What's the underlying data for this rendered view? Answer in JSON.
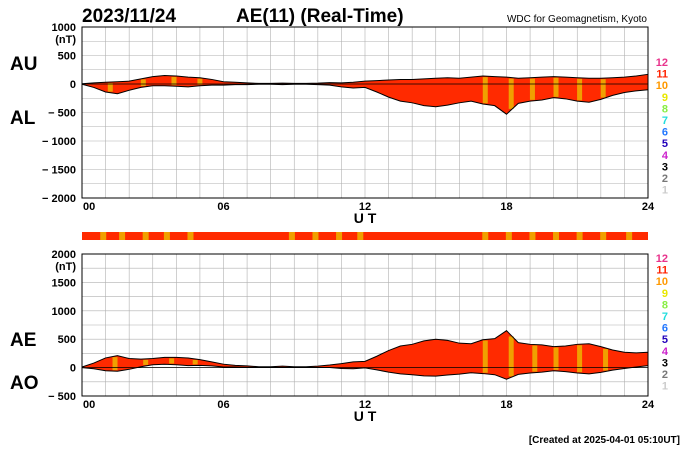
{
  "header": {
    "date": "2023/11/24",
    "title": "AE(11) (Real-Time)",
    "source": "WDC for Geomagnetism, Kyoto"
  },
  "footer": {
    "created": "[Created at 2025-04-01 05:10UT]"
  },
  "legend": {
    "items": [
      {
        "label": "12",
        "color": "#e8338c"
      },
      {
        "label": "11",
        "color": "#ff2200"
      },
      {
        "label": "10",
        "color": "#ff9900"
      },
      {
        "label": "9",
        "color": "#e8e800"
      },
      {
        "label": "8",
        "color": "#88ee44"
      },
      {
        "label": "7",
        "color": "#22dddd"
      },
      {
        "label": "6",
        "color": "#2277ff"
      },
      {
        "label": "5",
        "color": "#2200bb"
      },
      {
        "label": "4",
        "color": "#cc22cc"
      },
      {
        "label": "3",
        "color": "#000000"
      },
      {
        "label": "2",
        "color": "#777777"
      },
      {
        "label": "1",
        "color": "#cccccc"
      }
    ]
  },
  "colors": {
    "fill": "#ff2a00",
    "station_gap": "#f0a000",
    "grid": "#b0b0b0",
    "outline": "#000000"
  },
  "chart_data": [
    {
      "type": "area",
      "panel": "AU/AL",
      "labels": {
        "upper": "AU",
        "lower": "AL"
      },
      "ylabel": "(nT)",
      "xlabel": "U T",
      "ylim": [
        -2000,
        1000
      ],
      "yticks": [
        1000,
        500,
        0,
        -500,
        -1000,
        -1500,
        -2000
      ],
      "ytick_labels": [
        "1000",
        "500",
        "0",
        "− 500",
        "− 1000",
        "− 1500",
        "− 2000"
      ],
      "xlim": [
        0,
        24
      ],
      "xticks": [
        0,
        6,
        12,
        18,
        24
      ],
      "xtick_labels": [
        "00",
        "06",
        "12",
        "18",
        "24"
      ],
      "x": [
        0,
        0.5,
        1,
        1.5,
        2,
        2.5,
        3,
        3.5,
        4,
        4.5,
        5,
        5.5,
        6,
        6.5,
        7,
        7.5,
        8,
        8.5,
        9,
        9.5,
        10,
        10.5,
        11,
        11.5,
        12,
        12.5,
        13,
        13.5,
        14,
        14.5,
        15,
        15.5,
        16,
        16.5,
        17,
        17.5,
        18,
        18.5,
        19,
        19.5,
        20,
        20.5,
        21,
        21.5,
        22,
        22.5,
        23,
        23.5,
        24
      ],
      "series": [
        {
          "name": "AU",
          "values": [
            5,
            20,
            30,
            40,
            50,
            90,
            130,
            150,
            140,
            120,
            110,
            80,
            40,
            30,
            20,
            10,
            10,
            15,
            10,
            10,
            15,
            25,
            20,
            30,
            50,
            60,
            70,
            80,
            80,
            90,
            100,
            110,
            100,
            120,
            140,
            130,
            120,
            100,
            110,
            120,
            130,
            120,
            110,
            100,
            100,
            110,
            120,
            140,
            170
          ]
        },
        {
          "name": "AL",
          "values": [
            -5,
            -60,
            -140,
            -170,
            -110,
            -60,
            -30,
            -30,
            -40,
            -50,
            -30,
            -20,
            -20,
            -10,
            -10,
            -5,
            -5,
            -10,
            -5,
            -5,
            -10,
            -20,
            -50,
            -70,
            -60,
            -140,
            -230,
            -300,
            -330,
            -380,
            -400,
            -370,
            -330,
            -300,
            -350,
            -380,
            -530,
            -340,
            -300,
            -280,
            -240,
            -260,
            -300,
            -320,
            -270,
            -200,
            -150,
            -120,
            -100
          ]
        }
      ],
      "station_gaps": [
        1.2,
        2.6,
        3.9,
        5.0,
        17.1,
        18.2,
        19.1,
        20.1,
        21.1,
        22.1
      ]
    },
    {
      "type": "area",
      "panel": "AE/AO",
      "labels": {
        "upper": "AE",
        "lower": "AO"
      },
      "ylabel": "(nT)",
      "xlabel": "U T",
      "ylim": [
        -500,
        2000
      ],
      "yticks": [
        2000,
        1500,
        1000,
        500,
        0,
        -500
      ],
      "ytick_labels": [
        "2000",
        "1500",
        "1000",
        "500",
        "0",
        "− 500"
      ],
      "xlim": [
        0,
        24
      ],
      "xticks": [
        0,
        6,
        12,
        18,
        24
      ],
      "xtick_labels": [
        "00",
        "06",
        "12",
        "18",
        "24"
      ],
      "x": [
        0,
        0.5,
        1,
        1.5,
        2,
        2.5,
        3,
        3.5,
        4,
        4.5,
        5,
        5.5,
        6,
        6.5,
        7,
        7.5,
        8,
        8.5,
        9,
        9.5,
        10,
        10.5,
        11,
        11.5,
        12,
        12.5,
        13,
        13.5,
        14,
        14.5,
        15,
        15.5,
        16,
        16.5,
        17,
        17.5,
        18,
        18.5,
        19,
        19.5,
        20,
        20.5,
        21,
        21.5,
        22,
        22.5,
        23,
        23.5,
        24
      ],
      "series": [
        {
          "name": "AE",
          "values": [
            10,
            80,
            170,
            210,
            160,
            150,
            160,
            180,
            180,
            170,
            140,
            100,
            60,
            40,
            30,
            15,
            15,
            25,
            15,
            15,
            25,
            45,
            70,
            100,
            110,
            200,
            300,
            380,
            410,
            470,
            500,
            480,
            430,
            420,
            490,
            510,
            650,
            440,
            410,
            400,
            370,
            380,
            410,
            420,
            370,
            310,
            270,
            260,
            270
          ]
        },
        {
          "name": "AO",
          "values": [
            0,
            -20,
            -55,
            -65,
            -30,
            15,
            50,
            60,
            50,
            35,
            40,
            30,
            10,
            10,
            5,
            2,
            2,
            2,
            2,
            2,
            2,
            2,
            -15,
            -20,
            -5,
            -40,
            -80,
            -110,
            -125,
            -145,
            -150,
            -130,
            -115,
            -90,
            -105,
            -125,
            -205,
            -120,
            -95,
            -80,
            -55,
            -70,
            -95,
            -110,
            -85,
            -45,
            -15,
            10,
            35
          ]
        }
      ],
      "station_gaps": [
        1.4,
        2.7,
        3.8,
        4.8,
        17.1,
        18.2,
        19.2,
        20.1,
        21.1,
        22.2
      ]
    }
  ],
  "coverage_bar": {
    "station_gaps": [
      0.9,
      1.7,
      2.7,
      3.6,
      4.6,
      8.9,
      9.9,
      10.9,
      11.8,
      17.1,
      18.1,
      19.1,
      20.1,
      21.1,
      22.1,
      23.2
    ]
  }
}
